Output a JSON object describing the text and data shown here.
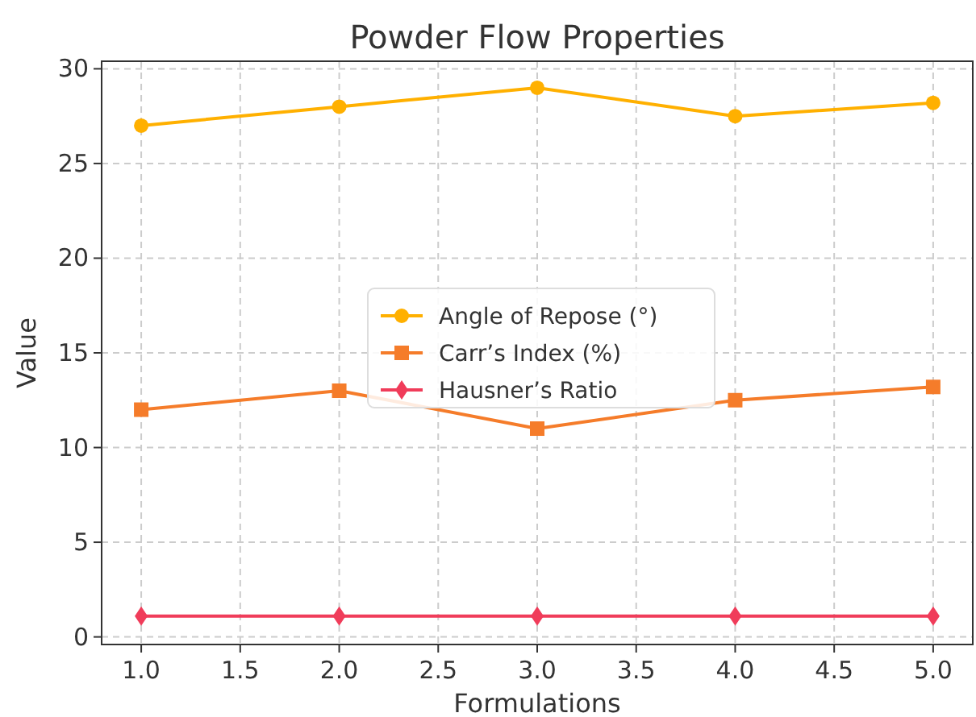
{
  "chart_data": {
    "type": "line",
    "title": "Powder Flow Properties",
    "xlabel": "Formulations",
    "ylabel": "Value",
    "x": [
      1,
      2,
      3,
      4,
      5
    ],
    "series": [
      {
        "name": "Angle of Repose (°)",
        "color": "#ffb000",
        "values": [
          27,
          28,
          29,
          27.5,
          28.2
        ],
        "marker": "circle"
      },
      {
        "name": "Carr’s Index (%)",
        "color": "#f57c2a",
        "values": [
          12,
          13,
          11,
          12.5,
          13.2
        ],
        "marker": "square"
      },
      {
        "name": "Hausner’s Ratio",
        "color": "#f03c5a",
        "values": [
          1.1,
          1.1,
          1.1,
          1.1,
          1.1
        ],
        "marker": "diamond"
      }
    ],
    "xlim": [
      0.8,
      5.2
    ],
    "xticks": [
      {
        "value": 1,
        "label": "1.0"
      },
      {
        "value": 1.5,
        "label": "1.5"
      },
      {
        "value": 2,
        "label": "2.0"
      },
      {
        "value": 2.5,
        "label": "2.5"
      },
      {
        "value": 3,
        "label": "3.0"
      },
      {
        "value": 3.5,
        "label": "3.5"
      },
      {
        "value": 4,
        "label": "4.0"
      },
      {
        "value": 4.5,
        "label": "4.5"
      },
      {
        "value": 5,
        "label": "5.0"
      }
    ],
    "ylim": [
      -0.4,
      30.4
    ],
    "yticks": [
      0,
      5,
      10,
      15,
      20,
      25,
      30
    ],
    "grid": true,
    "legend": "center left",
    "line_style": "solid"
  }
}
